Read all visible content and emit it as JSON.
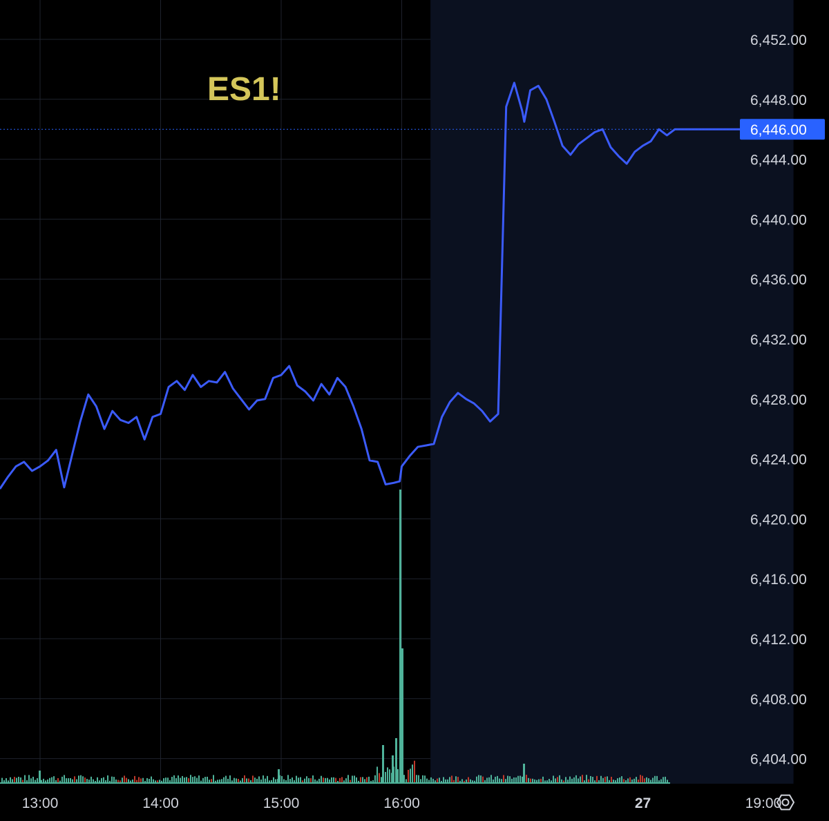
{
  "symbol": "ES1!",
  "settings_icon": "gear-icon",
  "colors": {
    "background": "#000000",
    "grid": "#1e222d",
    "session_shade": "#0b1120",
    "price_line": "#3b5bfa",
    "last_price_tag": "#2962ff",
    "volume_up": "#4fb39a",
    "volume_down": "#c0392b",
    "watermark": "#d4c65a",
    "axis_text": "#d1d4dc"
  },
  "chart_data": {
    "type": "line",
    "title": "ES1!",
    "y_ticks": [
      "6,452.00",
      "6,448.00",
      "6,444.00",
      "6,440.00",
      "6,436.00",
      "6,432.00",
      "6,428.00",
      "6,424.00",
      "6,420.00",
      "6,416.00",
      "6,412.00",
      "6,408.00",
      "6,404.00"
    ],
    "x_ticks": [
      "13:00",
      "14:00",
      "15:00",
      "16:00",
      "27",
      "19:00"
    ],
    "ylim": [
      6402.0,
      6454.0
    ],
    "xlim": [
      "12:40",
      "20:05"
    ],
    "last_price": "6,446.00",
    "post_session_start": "16:15",
    "post_session_end": "19:15",
    "grid": true,
    "series": [
      {
        "type": "line",
        "x": [
          "12:40",
          "12:44",
          "12:48",
          "12:52",
          "12:56",
          "13:00",
          "13:04",
          "13:08",
          "13:12",
          "13:16",
          "13:20",
          "13:24",
          "13:28",
          "13:32",
          "13:36",
          "13:40",
          "13:44",
          "13:48",
          "13:52",
          "13:56",
          "14:00",
          "14:04",
          "14:08",
          "14:12",
          "14:16",
          "14:20",
          "14:24",
          "14:28",
          "14:32",
          "14:36",
          "14:40",
          "14:44",
          "14:48",
          "14:52",
          "14:56",
          "15:00",
          "15:04",
          "15:08",
          "15:12",
          "15:16",
          "15:20",
          "15:24",
          "15:28",
          "15:32",
          "15:36",
          "15:40",
          "15:44",
          "15:48",
          "15:52",
          "15:56",
          "15:59",
          "16:00",
          "16:04",
          "16:08",
          "16:12",
          "16:16",
          "16:20",
          "16:24",
          "16:28",
          "16:32",
          "16:36",
          "16:40",
          "16:44",
          "16:48",
          "16:52",
          "16:56",
          "17:00",
          "17:01",
          "17:04",
          "17:08",
          "17:12",
          "17:16",
          "17:20",
          "17:24",
          "17:28",
          "17:32",
          "17:36",
          "17:40",
          "17:44",
          "17:48",
          "17:52",
          "17:56",
          "18:00",
          "18:04",
          "18:08",
          "18:12",
          "18:16",
          "18:20",
          "18:24",
          "18:28",
          "18:32",
          "18:36",
          "18:40",
          "18:44",
          "18:48",
          "18:52",
          "18:56",
          "19:00",
          "19:04",
          "19:08",
          "19:12"
        ],
        "y": [
          6422.0,
          6422.8,
          6423.5,
          6423.8,
          6423.2,
          6423.5,
          6423.9,
          6424.6,
          6422.1,
          6424.3,
          6426.5,
          6428.3,
          6427.5,
          6426.0,
          6427.2,
          6426.6,
          6426.4,
          6426.8,
          6425.3,
          6426.8,
          6427.0,
          6428.8,
          6429.2,
          6428.6,
          6429.6,
          6428.8,
          6429.2,
          6429.1,
          6429.8,
          6428.7,
          6428.0,
          6427.3,
          6427.9,
          6428.0,
          6429.4,
          6429.6,
          6430.2,
          6428.9,
          6428.5,
          6427.9,
          6429.0,
          6428.3,
          6429.4,
          6428.8,
          6427.5,
          6426.0,
          6423.9,
          6423.8,
          6422.3,
          6422.4,
          6422.5,
          6423.5,
          6424.2,
          6424.8,
          6424.9,
          6425.0,
          6426.8,
          6427.8,
          6428.4,
          6428.0,
          6427.7,
          6427.2,
          6426.5,
          6427.0,
          6447.5,
          6449.1,
          6447.2,
          6446.5,
          6448.6,
          6448.9,
          6448.0,
          6446.5,
          6444.9,
          6444.3,
          6445.0,
          6445.4,
          6445.8,
          6446.0,
          6444.8,
          6444.2,
          6443.7,
          6444.5,
          6444.9,
          6445.2,
          6446.0,
          6445.6,
          6446.0,
          6446.0,
          6446.0,
          6446.0,
          6446.0,
          6446.0,
          6446.0,
          6446.0,
          6446.0,
          6446.0,
          6446.0,
          6446.0,
          6446.0,
          6446.0,
          6446.0
        ]
      }
    ],
    "volume": {
      "peak_time": "15:59",
      "note": "volume histogram at bottom; spike near 16:00"
    }
  }
}
